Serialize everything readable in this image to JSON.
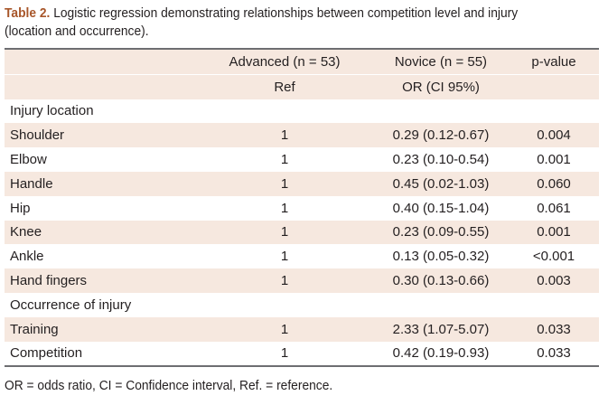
{
  "caption": {
    "lead": "Table 2.",
    "text": " Logistic regression demonstrating relationships between competition level and injury",
    "line2": "(location and occurrence)."
  },
  "header": {
    "col1": "Advanced (n = 53)",
    "col2": "Novice (n = 55)",
    "col3": "p-value",
    "sub1": "Ref",
    "sub2": "OR (CI 95%)"
  },
  "sections": {
    "location": "Injury location",
    "occurrence": "Occurrence of injury"
  },
  "rows": [
    {
      "label": "Shoulder",
      "ref": "1",
      "or": "0.29 (0.12-0.67)",
      "p": "0.004"
    },
    {
      "label": "Elbow",
      "ref": "1",
      "or": "0.23 (0.10-0.54)",
      "p": "0.001"
    },
    {
      "label": "Handle",
      "ref": "1",
      "or": "0.45 (0.02-1.03)",
      "p": "0.060"
    },
    {
      "label": "Hip",
      "ref": "1",
      "or": "0.40 (0.15-1.04)",
      "p": "0.061"
    },
    {
      "label": "Knee",
      "ref": "1",
      "or": "0.23 (0.09-0.55)",
      "p": "0.001"
    },
    {
      "label": "Ankle",
      "ref": "1",
      "or": "0.13 (0.05-0.32)",
      "p": "<0.001"
    },
    {
      "label": "Hand fingers",
      "ref": "1",
      "or": "0.30 (0.13-0.66)",
      "p": "0.003"
    },
    {
      "label": "Training",
      "ref": "1",
      "or": "2.33 (1.07-5.07)",
      "p": "0.033"
    },
    {
      "label": "Competition",
      "ref": "1",
      "or": "0.42 (0.19-0.93)",
      "p": "0.033"
    }
  ],
  "footnote": "OR = odds ratio, CI = Confidence interval, Ref. = reference.",
  "colors": {
    "caption_lead": "#a8562a",
    "row_shade": "#f6e8df",
    "rule": "#6d6e71"
  }
}
